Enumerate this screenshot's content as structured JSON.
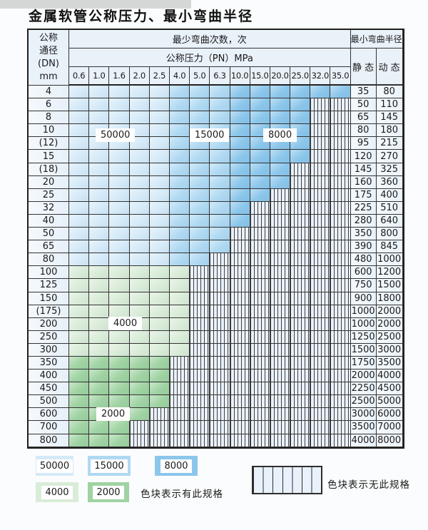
{
  "page": {
    "title": "金属软管公称压力、最小弯曲半径"
  },
  "table": {
    "dn_header_lines": [
      "公称",
      "通径",
      "(DN)",
      "mm"
    ],
    "cycles_header": "最少弯曲次数，次",
    "pressure_header": "公称压力（PN）MPa",
    "radius_header": "最小弯曲半径",
    "static_header": "静 态",
    "dynamic_header": "动 态",
    "pressure_columns": [
      "0.6",
      "1.0",
      "1.6",
      "2.0",
      "2.5",
      "4.0",
      "5.0",
      "6.3",
      "10.0",
      "15.0",
      "20.0",
      "25.0",
      "32.0",
      "35.0"
    ],
    "blue_zone_columns": {
      "50000": [
        0,
        4
      ],
      "15000": [
        5,
        7
      ],
      "8000": [
        8,
        13
      ]
    },
    "rows": [
      {
        "dn": "4",
        "group": "blue",
        "avail_count": 14,
        "available_through": "35.0",
        "static": "35",
        "dynamic": "80"
      },
      {
        "dn": "6",
        "group": "blue",
        "avail_count": 12,
        "available_through": "25.0",
        "static": "50",
        "dynamic": "110"
      },
      {
        "dn": "8",
        "group": "blue",
        "avail_count": 12,
        "available_through": "25.0",
        "static": "65",
        "dynamic": "145"
      },
      {
        "dn": "10",
        "group": "blue",
        "avail_count": 12,
        "available_through": "25.0",
        "static": "80",
        "dynamic": "180"
      },
      {
        "dn": "(12)",
        "group": "blue",
        "avail_count": 12,
        "available_through": "25.0",
        "static": "95",
        "dynamic": "215"
      },
      {
        "dn": "15",
        "group": "blue",
        "avail_count": 12,
        "available_through": "25.0",
        "static": "120",
        "dynamic": "270"
      },
      {
        "dn": "(18)",
        "group": "blue",
        "avail_count": 11,
        "available_through": "20.0",
        "static": "145",
        "dynamic": "325"
      },
      {
        "dn": "20",
        "group": "blue",
        "avail_count": 11,
        "available_through": "20.0",
        "static": "160",
        "dynamic": "360"
      },
      {
        "dn": "25",
        "group": "blue",
        "avail_count": 10,
        "available_through": "15.0",
        "static": "175",
        "dynamic": "400"
      },
      {
        "dn": "32",
        "group": "blue",
        "avail_count": 9,
        "available_through": "10.0",
        "static": "225",
        "dynamic": "510"
      },
      {
        "dn": "40",
        "group": "blue",
        "avail_count": 9,
        "available_through": "10.0",
        "static": "280",
        "dynamic": "640"
      },
      {
        "dn": "50",
        "group": "blue",
        "avail_count": 8,
        "available_through": "6.3",
        "static": "350",
        "dynamic": "800"
      },
      {
        "dn": "65",
        "group": "blue",
        "avail_count": 8,
        "available_through": "6.3",
        "static": "390",
        "dynamic": "845"
      },
      {
        "dn": "80",
        "group": "blue",
        "avail_count": 7,
        "available_through": "5.0",
        "static": "480",
        "dynamic": "1000"
      },
      {
        "dn": "100",
        "group": "4000",
        "avail_count": 6,
        "available_through": "4.0",
        "static": "600",
        "dynamic": "1200"
      },
      {
        "dn": "125",
        "group": "4000",
        "avail_count": 6,
        "available_through": "4.0",
        "static": "750",
        "dynamic": "1500"
      },
      {
        "dn": "150",
        "group": "4000",
        "avail_count": 6,
        "available_through": "4.0",
        "static": "900",
        "dynamic": "1800"
      },
      {
        "dn": "(175)",
        "group": "4000",
        "avail_count": 6,
        "available_through": "4.0",
        "static": "1000",
        "dynamic": "2000"
      },
      {
        "dn": "200",
        "group": "4000",
        "avail_count": 6,
        "available_through": "4.0",
        "static": "1000",
        "dynamic": "2000"
      },
      {
        "dn": "250",
        "group": "4000",
        "avail_count": 6,
        "available_through": "4.0",
        "static": "1250",
        "dynamic": "2500"
      },
      {
        "dn": "300",
        "group": "4000",
        "avail_count": 6,
        "available_through": "4.0",
        "static": "1500",
        "dynamic": "3000"
      },
      {
        "dn": "350",
        "group": "2000",
        "avail_count": 5,
        "available_through": "2.5",
        "static": "1750",
        "dynamic": "3500"
      },
      {
        "dn": "400",
        "group": "2000",
        "avail_count": 5,
        "available_through": "2.5",
        "static": "2000",
        "dynamic": "4000"
      },
      {
        "dn": "450",
        "group": "2000",
        "avail_count": 5,
        "available_through": "2.5",
        "static": "2250",
        "dynamic": "4500"
      },
      {
        "dn": "500",
        "group": "2000",
        "avail_count": 5,
        "available_through": "2.5",
        "static": "2500",
        "dynamic": "5000"
      },
      {
        "dn": "600",
        "group": "2000",
        "avail_count": 4,
        "available_through": "2.0",
        "static": "3000",
        "dynamic": "6000"
      },
      {
        "dn": "700",
        "group": "2000",
        "avail_count": 3,
        "available_through": "1.6",
        "static": "3500",
        "dynamic": "7000"
      },
      {
        "dn": "800",
        "group": "2000",
        "avail_count": 3,
        "available_through": "1.6",
        "static": "4000",
        "dynamic": "8000"
      }
    ]
  },
  "overlay_labels": [
    {
      "text": "50000",
      "near_dn": "10"
    },
    {
      "text": "15000",
      "near_dn": "10"
    },
    {
      "text": "8000",
      "near_dn": "10"
    },
    {
      "text": "4000",
      "near_dn": "200"
    },
    {
      "text": "2000",
      "near_dn": "600"
    }
  ],
  "legend": {
    "items": [
      {
        "label": "50000",
        "color": "#d5eaf8"
      },
      {
        "label": "15000",
        "color": "#afd9f2"
      },
      {
        "label": "8000",
        "color": "#8bc6eb"
      },
      {
        "label": "4000",
        "color": "#d9ecd8"
      },
      {
        "label": "2000",
        "color": "#9fd3a2"
      }
    ],
    "available_note": "色块表示有此规格",
    "unavailable_note": "色块表示无此规格"
  },
  "colors": {
    "striped_cell_bg": "#eaf1fa",
    "header_bg": "#e9f1f9",
    "grid_line": "#333333",
    "outer_border": "#1f1f1f"
  }
}
